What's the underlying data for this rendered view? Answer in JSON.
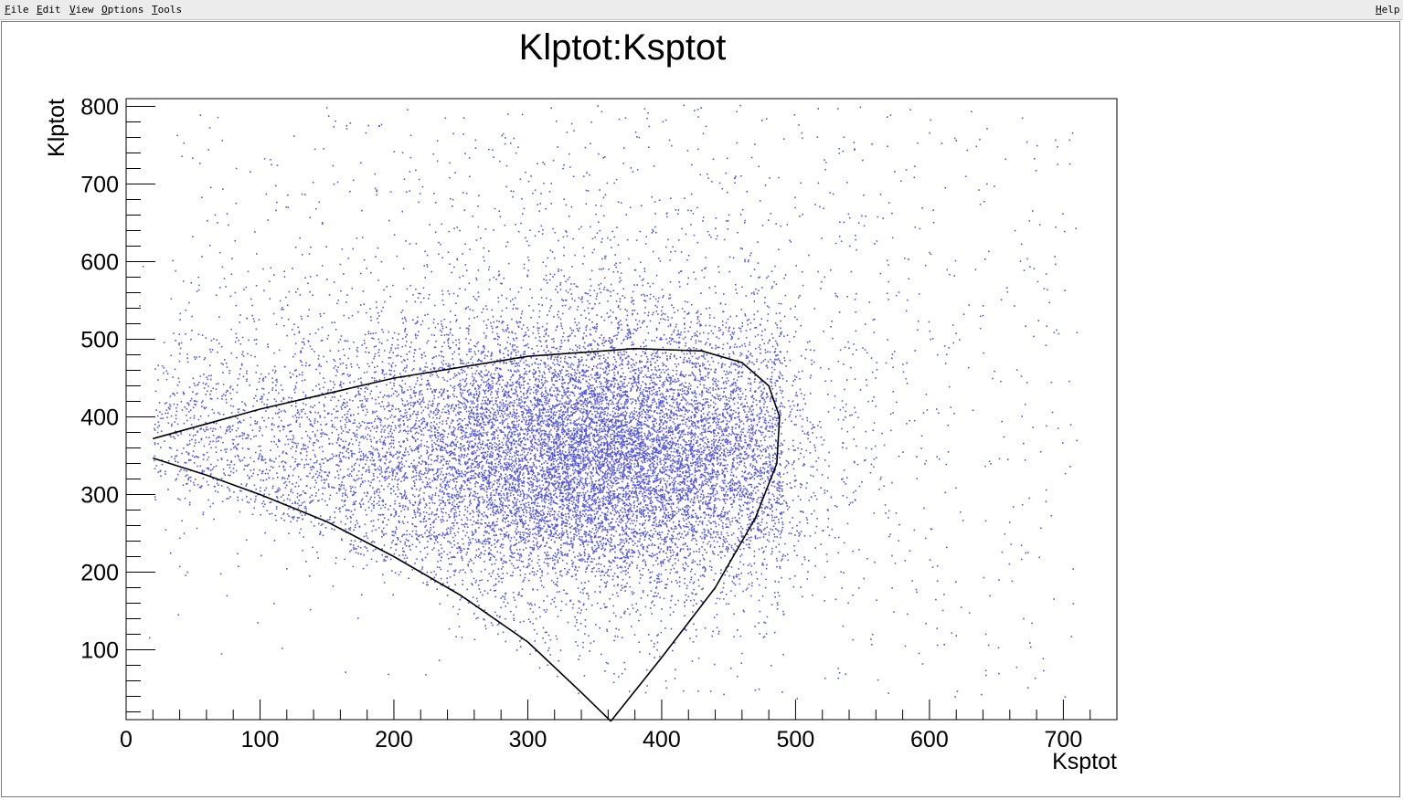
{
  "menubar": {
    "items": [
      {
        "mnemonic": "F",
        "rest": "ile"
      },
      {
        "mnemonic": "E",
        "rest": "dit"
      },
      {
        "mnemonic": "V",
        "rest": "iew"
      },
      {
        "mnemonic": "O",
        "rest": "ptions"
      },
      {
        "mnemonic": "T",
        "rest": "ools"
      }
    ],
    "help": {
      "mnemonic": "H",
      "rest": "elp"
    }
  },
  "chart_data": {
    "type": "scatter",
    "title": "Klptot:Ksptot",
    "xlabel": "Ksptot",
    "ylabel": "Klptot",
    "xlim": [
      0,
      740
    ],
    "ylim": [
      10,
      810
    ],
    "x_ticks": [
      0,
      100,
      200,
      300,
      400,
      500,
      600,
      700
    ],
    "y_ticks": [
      100,
      200,
      300,
      400,
      500,
      600,
      700,
      800
    ],
    "grid": false,
    "legend": "none",
    "marker_color": "#5555dd",
    "boundary_color": "#000000",
    "approx_point_count": 16000,
    "point_distribution": {
      "description_note": "dense cloud, peak density",
      "core_center": [
        350,
        350
      ],
      "core_spread": [
        75,
        85
      ]
    },
    "kinematic_boundary": {
      "upper_branch": [
        [
          20,
          372
        ],
        [
          100,
          410
        ],
        [
          200,
          450
        ],
        [
          300,
          478
        ],
        [
          380,
          488
        ],
        [
          430,
          485
        ],
        [
          460,
          470
        ],
        [
          480,
          440
        ],
        [
          488,
          400
        ],
        [
          486,
          340
        ],
        [
          470,
          270
        ],
        [
          440,
          180
        ],
        [
          400,
          90
        ],
        [
          362,
          8
        ]
      ],
      "lower_branch": [
        [
          20,
          347
        ],
        [
          60,
          325
        ],
        [
          100,
          300
        ],
        [
          150,
          265
        ],
        [
          200,
          220
        ],
        [
          250,
          170
        ],
        [
          300,
          110
        ],
        [
          340,
          45
        ],
        [
          362,
          8
        ]
      ]
    }
  }
}
